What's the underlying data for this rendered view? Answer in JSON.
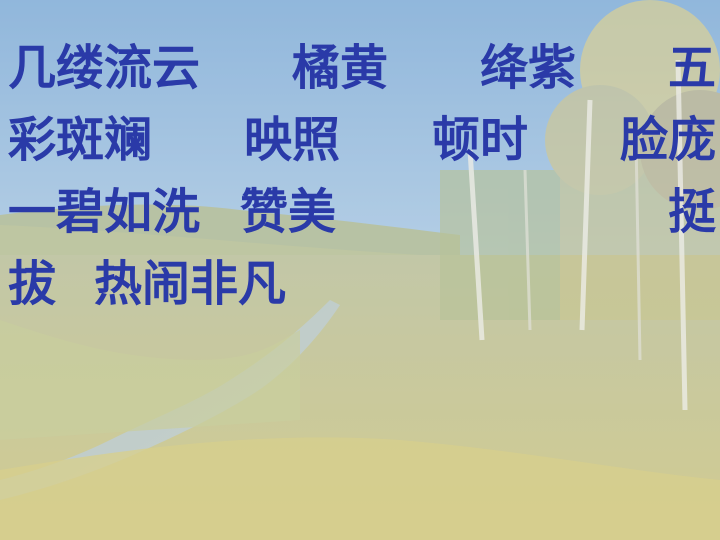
{
  "words": {
    "line1": [
      "几缕流云",
      "橘黄",
      "绛紫",
      "五"
    ],
    "line2": [
      "彩斑斓",
      "映照",
      "顿时",
      "脸庞"
    ],
    "line3": [
      "一碧如洗",
      "赞美",
      "挺"
    ],
    "line4": [
      "拔",
      "热闹非凡"
    ]
  },
  "colors": {
    "text": "#2a3aa8",
    "sky": "#8fb8dc",
    "grass": "#b9b26a"
  }
}
